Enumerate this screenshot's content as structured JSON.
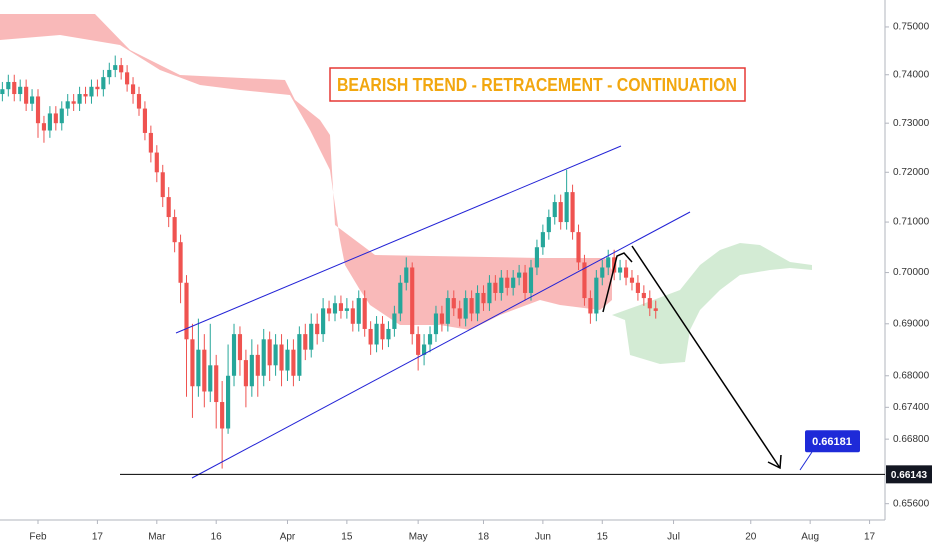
{
  "chart_data": {
    "type": "candlestick",
    "title": "BEARISH TREND - RETRACEMENT - CONTINUATION",
    "up_color": "#26a69a",
    "down_color": "#ef5350",
    "log_scale": true,
    "candles": [
      [
        0.736,
        0.7385,
        0.7345,
        0.737
      ],
      [
        0.737,
        0.74,
        0.7355,
        0.7385
      ],
      [
        0.7385,
        0.74,
        0.7345,
        0.736
      ],
      [
        0.736,
        0.739,
        0.7345,
        0.7375
      ],
      [
        0.7375,
        0.739,
        0.7325,
        0.734
      ],
      [
        0.734,
        0.737,
        0.7325,
        0.7355
      ],
      [
        0.7355,
        0.737,
        0.727,
        0.73
      ],
      [
        0.73,
        0.7315,
        0.726,
        0.7285
      ],
      [
        0.7285,
        0.7335,
        0.727,
        0.732
      ],
      [
        0.732,
        0.7335,
        0.7285,
        0.73
      ],
      [
        0.73,
        0.7345,
        0.7285,
        0.733
      ],
      [
        0.733,
        0.736,
        0.7315,
        0.7345
      ],
      [
        0.7345,
        0.736,
        0.7325,
        0.734
      ],
      [
        0.734,
        0.7375,
        0.7325,
        0.736
      ],
      [
        0.736,
        0.7375,
        0.734,
        0.7355
      ],
      [
        0.7355,
        0.739,
        0.734,
        0.7375
      ],
      [
        0.7375,
        0.739,
        0.7355,
        0.737
      ],
      [
        0.737,
        0.741,
        0.7355,
        0.7395
      ],
      [
        0.7395,
        0.7425,
        0.738,
        0.741
      ],
      [
        0.741,
        0.744,
        0.7395,
        0.742
      ],
      [
        0.742,
        0.7435,
        0.739,
        0.7405
      ],
      [
        0.7405,
        0.742,
        0.7365,
        0.738
      ],
      [
        0.738,
        0.7395,
        0.734,
        0.736
      ],
      [
        0.736,
        0.7375,
        0.7315,
        0.733
      ],
      [
        0.733,
        0.7345,
        0.7265,
        0.728
      ],
      [
        0.728,
        0.7295,
        0.722,
        0.724
      ],
      [
        0.724,
        0.7255,
        0.718,
        0.72
      ],
      [
        0.72,
        0.7215,
        0.713,
        0.715
      ],
      [
        0.715,
        0.717,
        0.709,
        0.711
      ],
      [
        0.711,
        0.7125,
        0.704,
        0.706
      ],
      [
        0.706,
        0.7075,
        0.694,
        0.698
      ],
      [
        0.698,
        0.6995,
        0.676,
        0.687
      ],
      [
        0.687,
        0.69,
        0.672,
        0.678
      ],
      [
        0.678,
        0.691,
        0.676,
        0.685
      ],
      [
        0.685,
        0.688,
        0.674,
        0.677
      ],
      [
        0.677,
        0.69,
        0.675,
        0.682
      ],
      [
        0.682,
        0.684,
        0.67,
        0.675
      ],
      [
        0.675,
        0.679,
        0.6625,
        0.67
      ],
      [
        0.67,
        0.686,
        0.669,
        0.68
      ],
      [
        0.68,
        0.69,
        0.678,
        0.688
      ],
      [
        0.688,
        0.6895,
        0.68,
        0.683
      ],
      [
        0.683,
        0.685,
        0.674,
        0.678
      ],
      [
        0.678,
        0.687,
        0.676,
        0.684
      ],
      [
        0.684,
        0.686,
        0.676,
        0.68
      ],
      [
        0.68,
        0.689,
        0.678,
        0.687
      ],
      [
        0.687,
        0.6885,
        0.679,
        0.682
      ],
      [
        0.682,
        0.688,
        0.68,
        0.686
      ],
      [
        0.686,
        0.688,
        0.678,
        0.681
      ],
      [
        0.681,
        0.687,
        0.679,
        0.685
      ],
      [
        0.685,
        0.687,
        0.678,
        0.68
      ],
      [
        0.68,
        0.6895,
        0.679,
        0.688
      ],
      [
        0.688,
        0.69,
        0.683,
        0.685
      ],
      [
        0.685,
        0.692,
        0.6835,
        0.69
      ],
      [
        0.69,
        0.692,
        0.686,
        0.688
      ],
      [
        0.688,
        0.695,
        0.6865,
        0.693
      ],
      [
        0.693,
        0.6945,
        0.6905,
        0.692
      ],
      [
        0.692,
        0.6955,
        0.6905,
        0.694
      ],
      [
        0.694,
        0.6955,
        0.691,
        0.6925
      ],
      [
        0.6925,
        0.695,
        0.691,
        0.693
      ],
      [
        0.693,
        0.6945,
        0.6885,
        0.69
      ],
      [
        0.69,
        0.6965,
        0.6885,
        0.695
      ],
      [
        0.695,
        0.6965,
        0.6875,
        0.689
      ],
      [
        0.689,
        0.6905,
        0.684,
        0.686
      ],
      [
        0.686,
        0.6915,
        0.6845,
        0.69
      ],
      [
        0.69,
        0.6915,
        0.685,
        0.687
      ],
      [
        0.687,
        0.6905,
        0.6855,
        0.689
      ],
      [
        0.689,
        0.6935,
        0.6875,
        0.692
      ],
      [
        0.692,
        0.6995,
        0.6905,
        0.698
      ],
      [
        0.698,
        0.703,
        0.6965,
        0.701
      ],
      [
        0.701,
        0.702,
        0.686,
        0.688
      ],
      [
        0.688,
        0.6895,
        0.681,
        0.684
      ],
      [
        0.684,
        0.688,
        0.682,
        0.686
      ],
      [
        0.686,
        0.6895,
        0.6845,
        0.688
      ],
      [
        0.688,
        0.6935,
        0.6865,
        0.692
      ],
      [
        0.692,
        0.6935,
        0.6885,
        0.69
      ],
      [
        0.69,
        0.6965,
        0.6885,
        0.695
      ],
      [
        0.695,
        0.6965,
        0.6915,
        0.693
      ],
      [
        0.693,
        0.6945,
        0.6895,
        0.691
      ],
      [
        0.691,
        0.6965,
        0.6895,
        0.695
      ],
      [
        0.695,
        0.6965,
        0.6905,
        0.692
      ],
      [
        0.692,
        0.6975,
        0.6905,
        0.696
      ],
      [
        0.696,
        0.6975,
        0.6925,
        0.694
      ],
      [
        0.694,
        0.6995,
        0.6925,
        0.698
      ],
      [
        0.698,
        0.6995,
        0.6945,
        0.696
      ],
      [
        0.696,
        0.7005,
        0.6945,
        0.699
      ],
      [
        0.699,
        0.7005,
        0.6955,
        0.697
      ],
      [
        0.697,
        0.7005,
        0.6955,
        0.699
      ],
      [
        0.699,
        0.7015,
        0.6975,
        0.7
      ],
      [
        0.7,
        0.7015,
        0.6945,
        0.696
      ],
      [
        0.696,
        0.7025,
        0.6945,
        0.701
      ],
      [
        0.701,
        0.7065,
        0.6995,
        0.705
      ],
      [
        0.705,
        0.7095,
        0.7035,
        0.708
      ],
      [
        0.708,
        0.7125,
        0.7065,
        0.711
      ],
      [
        0.711,
        0.7155,
        0.7095,
        0.714
      ],
      [
        0.714,
        0.7155,
        0.7085,
        0.71
      ],
      [
        0.71,
        0.7205,
        0.7085,
        0.716
      ],
      [
        0.716,
        0.7175,
        0.7065,
        0.708
      ],
      [
        0.708,
        0.7095,
        0.7005,
        0.702
      ],
      [
        0.702,
        0.7035,
        0.6935,
        0.695
      ],
      [
        0.695,
        0.6965,
        0.69,
        0.692
      ],
      [
        0.692,
        0.7005,
        0.6905,
        0.699
      ],
      [
        0.699,
        0.7025,
        0.6975,
        0.701
      ],
      [
        0.701,
        0.7045,
        0.6995,
        0.703
      ],
      [
        0.703,
        0.7045,
        0.6985,
        0.7
      ],
      [
        0.7,
        0.7025,
        0.6985,
        0.701
      ],
      [
        0.701,
        0.7025,
        0.6975,
        0.699
      ],
      [
        0.699,
        0.7005,
        0.6965,
        0.698
      ],
      [
        0.698,
        0.6995,
        0.6945,
        0.696
      ],
      [
        0.696,
        0.6975,
        0.6935,
        0.695
      ],
      [
        0.695,
        0.6965,
        0.6915,
        0.693
      ],
      [
        0.693,
        0.6945,
        0.691,
        0.6925
      ]
    ],
    "xlim": [
      -0.4,
      148.6
    ],
    "xticks": [
      {
        "value": 6,
        "label": "Feb"
      },
      {
        "value": 16,
        "label": "17"
      },
      {
        "value": 26,
        "label": "Mar"
      },
      {
        "value": 36,
        "label": "16"
      },
      {
        "value": 48,
        "label": "Apr"
      },
      {
        "value": 58,
        "label": "15"
      },
      {
        "value": 70,
        "label": "May"
      },
      {
        "value": 81,
        "label": "18"
      },
      {
        "value": 91,
        "label": "Jun"
      },
      {
        "value": 101,
        "label": "15"
      },
      {
        "value": 113,
        "label": "Jul"
      },
      {
        "value": 126,
        "label": "20"
      },
      {
        "value": 136,
        "label": "Aug"
      },
      {
        "value": 146,
        "label": "17"
      }
    ],
    "ylim": [
      0.653,
      0.7557
    ],
    "yticks": [
      {
        "value": 0.75,
        "label": "0.75000"
      },
      {
        "value": 0.74,
        "label": "0.74000"
      },
      {
        "value": 0.73,
        "label": "0.73000"
      },
      {
        "value": 0.72,
        "label": "0.72000"
      },
      {
        "value": 0.71,
        "label": "0.71000"
      },
      {
        "value": 0.7,
        "label": "0.70000"
      },
      {
        "value": 0.69,
        "label": "0.69000"
      },
      {
        "value": 0.68,
        "label": "0.68000"
      },
      {
        "value": 0.674,
        "label": "0.67400"
      },
      {
        "value": 0.668,
        "label": "0.66800"
      },
      {
        "value": 0.656,
        "label": "0.65600"
      }
    ],
    "price_line": {
      "value": 0.66143,
      "label": "0.66143"
    },
    "target_price": {
      "value": 0.66181,
      "label": "0.66181"
    }
  }
}
